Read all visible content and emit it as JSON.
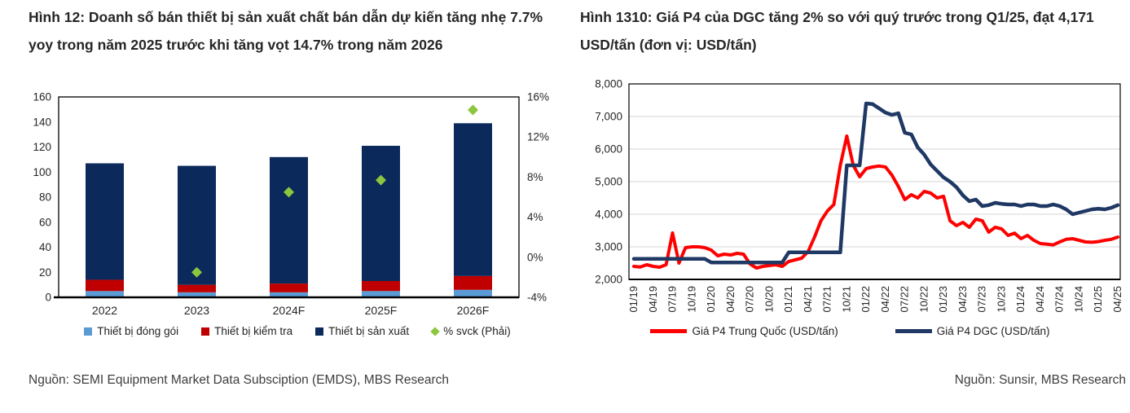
{
  "left_panel": {
    "title": "Hình 12: Doanh số bán thiết bị sản xuất chất bán dẫn dự kiến tăng nhẹ 7.7% yoy trong năm 2025 trước khi tăng vọt 14.7% trong năm 2026",
    "source": "Nguồn: SEMI Equipment Market Data Subsciption (EMDS), MBS Research",
    "legend": [
      {
        "label": "Thiết bị đóng gói",
        "color": "#5b9bd5",
        "marker": "square"
      },
      {
        "label": "Thiết bị kiểm tra",
        "color": "#c00000",
        "marker": "square"
      },
      {
        "label": "Thiết bị sản xuất",
        "color": "#0b2a5b",
        "marker": "square"
      },
      {
        "label": "% svck (Phải)",
        "color": "#8cc63f",
        "marker": "diamond"
      }
    ]
  },
  "right_panel": {
    "title": "Hình 1310: Giá P4 của DGC tăng 2% so với quý trước trong Q1/25, đạt 4,171 USD/tấn (đơn vị: USD/tấn)",
    "source": "Nguồn: Sunsir, MBS Research",
    "legend": [
      {
        "label": "Giá P4 Trung Quốc (USD/tấn)",
        "color": "#fe0000",
        "marker": "line"
      },
      {
        "label": "Giá P4 DGC (USD/tấn)",
        "color": "#1f3864",
        "marker": "line"
      }
    ]
  },
  "chart_data": [
    {
      "type": "bar",
      "title": "Doanh số bán thiết bị sản xuất chất bán dẫn",
      "categories": [
        "2022",
        "2023",
        "2024F",
        "2025F",
        "2026F"
      ],
      "series": [
        {
          "name": "Thiết bị đóng gói",
          "color": "#5b9bd5",
          "values": [
            5,
            4,
            4,
            5,
            6
          ]
        },
        {
          "name": "Thiết bị kiểm tra",
          "color": "#c00000",
          "values": [
            9,
            6,
            7,
            8,
            11
          ]
        },
        {
          "name": "Thiết bị sản xuất",
          "color": "#0b2a5b",
          "values": [
            93,
            95,
            101,
            108,
            122
          ]
        }
      ],
      "totals": [
        107,
        105,
        112,
        121,
        139
      ],
      "marker_series": {
        "name": "% svck (Phải)",
        "color": "#8cc63f",
        "axis": "right",
        "marker": "diamond",
        "values": [
          null,
          -1.5,
          6.5,
          7.7,
          14.7
        ]
      },
      "y_left": {
        "min": 0,
        "max": 160,
        "ticks": [
          "0",
          "20",
          "40",
          "60",
          "80",
          "100",
          "120",
          "140",
          "160"
        ]
      },
      "y_right": {
        "min": -4,
        "max": 16,
        "ticks": [
          "-4%",
          "0%",
          "4%",
          "8%",
          "12%",
          "16%"
        ]
      },
      "grid": false,
      "legend_position": "bottom"
    },
    {
      "type": "line",
      "title": "Giá P4 (USD/tấn)",
      "frequency": "monthly",
      "x_start": "01/19",
      "x_end": "04/25",
      "x_ticks": [
        "01/19",
        "04/19",
        "07/19",
        "10/19",
        "01/20",
        "04/20",
        "07/20",
        "10/20",
        "01/21",
        "04/21",
        "07/21",
        "10/21",
        "01/22",
        "04/22",
        "07/22",
        "10/22",
        "01/23",
        "04/23",
        "07/23",
        "10/23",
        "01/24",
        "04/24",
        "07/24",
        "10/24",
        "01/25",
        "04/25"
      ],
      "ylim": [
        2000,
        8000
      ],
      "y_ticks": [
        "2,000",
        "3,000",
        "4,000",
        "5,000",
        "6,000",
        "7,000",
        "8,000"
      ],
      "grid": "horizontal",
      "legend_position": "bottom",
      "series": [
        {
          "name": "Giá P4 Trung Quốc (USD/tấn)",
          "color": "#fe0000",
          "width": 4,
          "values": [
            2400,
            2380,
            2450,
            2400,
            2375,
            2450,
            3425,
            2500,
            2975,
            3000,
            3000,
            2975,
            2900,
            2725,
            2775,
            2750,
            2800,
            2775,
            2475,
            2350,
            2400,
            2425,
            2450,
            2400,
            2550,
            2600,
            2650,
            2850,
            3300,
            3800,
            4100,
            4300,
            5500,
            6400,
            5500,
            5150,
            5400,
            5450,
            5480,
            5450,
            5200,
            4850,
            4450,
            4600,
            4500,
            4700,
            4650,
            4500,
            4550,
            3800,
            3650,
            3750,
            3600,
            3850,
            3800,
            3450,
            3600,
            3550,
            3350,
            3420,
            3250,
            3350,
            3200,
            3100,
            3080,
            3060,
            3150,
            3230,
            3250,
            3200,
            3150,
            3140,
            3160,
            3200,
            3230,
            3300
          ]
        },
        {
          "name": "Giá P4 DGC (USD/tấn)",
          "color": "#1f3864",
          "width": 4.5,
          "values": [
            2630,
            2630,
            2630,
            2630,
            2630,
            2630,
            2630,
            2630,
            2630,
            2630,
            2630,
            2630,
            2520,
            2520,
            2520,
            2520,
            2520,
            2520,
            2520,
            2520,
            2520,
            2520,
            2520,
            2520,
            2830,
            2830,
            2830,
            2830,
            2830,
            2830,
            2830,
            2830,
            2830,
            5500,
            5500,
            5500,
            7400,
            7380,
            7250,
            7120,
            7050,
            7100,
            6500,
            6450,
            6050,
            5830,
            5530,
            5330,
            5130,
            5000,
            4830,
            4580,
            4400,
            4450,
            4250,
            4280,
            4350,
            4320,
            4300,
            4300,
            4250,
            4300,
            4300,
            4250,
            4250,
            4300,
            4250,
            4150,
            4000,
            4050,
            4100,
            4150,
            4171,
            4150,
            4200,
            4280
          ]
        }
      ]
    }
  ]
}
